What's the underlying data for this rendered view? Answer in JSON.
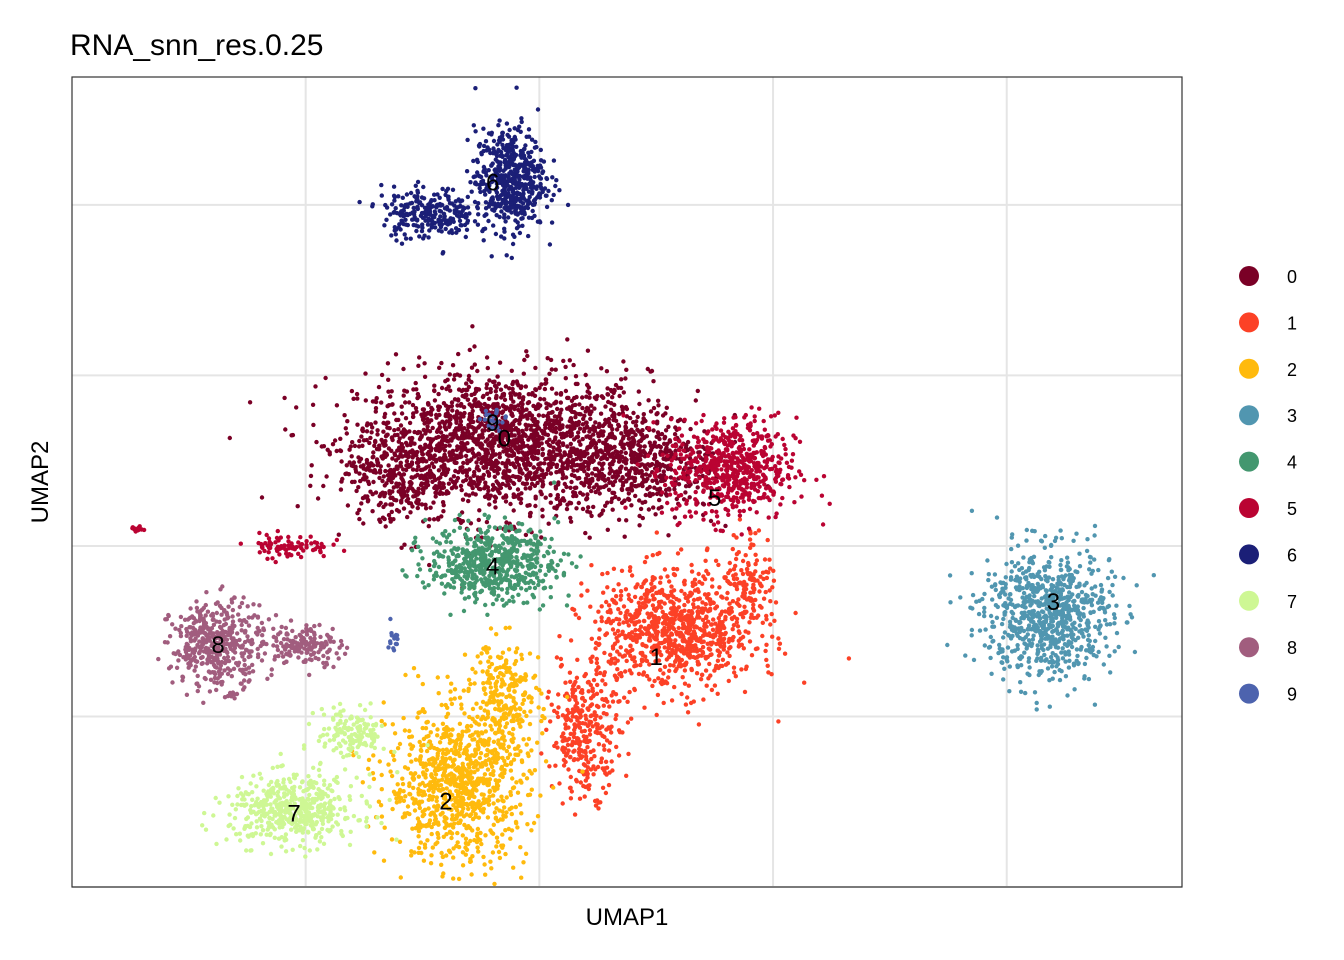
{
  "chart_data": {
    "type": "scatter",
    "title": "RNA_snn_res.0.25",
    "xlabel": "UMAP1",
    "ylabel": "UMAP2",
    "xlim": [
      0,
      9.5
    ],
    "ylim": [
      0,
      4.75
    ],
    "grid": true,
    "tick_labels_shown": false,
    "legend_position": "right",
    "series": [
      {
        "name": "0",
        "color": "#7A0026",
        "label_pos": [
          3.7,
          2.63
        ]
      },
      {
        "name": "1",
        "color": "#FC4126",
        "label_pos": [
          5.0,
          1.35
        ]
      },
      {
        "name": "2",
        "color": "#FFBA0D",
        "label_pos": [
          3.2,
          0.5
        ]
      },
      {
        "name": "3",
        "color": "#5196B0",
        "label_pos": [
          8.4,
          1.67
        ]
      },
      {
        "name": "4",
        "color": "#43976F",
        "label_pos": [
          3.6,
          1.88
        ]
      },
      {
        "name": "5",
        "color": "#BA0332",
        "label_pos": [
          5.5,
          2.28
        ]
      },
      {
        "name": "6",
        "color": "#1B1F77",
        "label_pos": [
          3.6,
          4.13
        ]
      },
      {
        "name": "7",
        "color": "#CEF794",
        "label_pos": [
          1.9,
          0.43
        ]
      },
      {
        "name": "8",
        "color": "#A15D7E",
        "label_pos": [
          1.25,
          1.42
        ]
      },
      {
        "name": "9",
        "color": "#4D63AE",
        "label_pos": [
          3.6,
          2.72
        ]
      }
    ],
    "clusters": [
      {
        "id": "0",
        "blobs": [
          [
            3.7,
            2.6,
            1.25,
            0.42,
            1800
          ],
          [
            4.8,
            2.5,
            0.7,
            0.3,
            500
          ],
          [
            2.8,
            2.45,
            0.45,
            0.3,
            300
          ]
        ]
      },
      {
        "id": "1",
        "blobs": [
          [
            5.15,
            1.5,
            0.7,
            0.35,
            900
          ],
          [
            4.4,
            0.9,
            0.3,
            0.35,
            300
          ],
          [
            5.8,
            1.8,
            0.2,
            0.3,
            120
          ]
        ]
      },
      {
        "id": "2",
        "blobs": [
          [
            3.3,
            0.6,
            0.6,
            0.45,
            900
          ],
          [
            3.7,
            1.1,
            0.3,
            0.35,
            250
          ]
        ]
      },
      {
        "id": "3",
        "blobs": [
          [
            8.35,
            1.6,
            0.55,
            0.38,
            800
          ]
        ]
      },
      {
        "id": "4",
        "blobs": [
          [
            3.6,
            1.9,
            0.55,
            0.22,
            600
          ]
        ]
      },
      {
        "id": "5",
        "blobs": [
          [
            5.65,
            2.45,
            0.55,
            0.3,
            600
          ],
          [
            1.85,
            2.0,
            0.35,
            0.07,
            80
          ],
          [
            0.55,
            2.1,
            0.1,
            0.02,
            15
          ]
        ]
      },
      {
        "id": "6",
        "blobs": [
          [
            3.75,
            4.15,
            0.3,
            0.3,
            550
          ],
          [
            3.05,
            3.95,
            0.4,
            0.15,
            250
          ]
        ]
      },
      {
        "id": "7",
        "blobs": [
          [
            1.9,
            0.45,
            0.55,
            0.2,
            500
          ],
          [
            2.4,
            0.9,
            0.3,
            0.15,
            150
          ]
        ]
      },
      {
        "id": "8",
        "blobs": [
          [
            1.25,
            1.42,
            0.4,
            0.25,
            450
          ],
          [
            2.0,
            1.42,
            0.3,
            0.12,
            150
          ]
        ]
      },
      {
        "id": "9",
        "blobs": [
          [
            3.6,
            2.75,
            0.12,
            0.07,
            20
          ],
          [
            2.75,
            1.45,
            0.04,
            0.08,
            15
          ]
        ]
      }
    ]
  }
}
